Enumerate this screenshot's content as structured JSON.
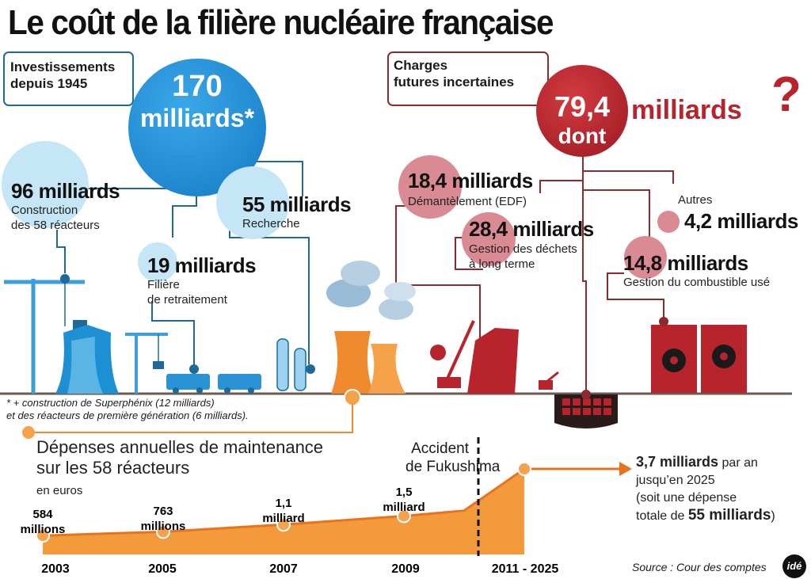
{
  "title": "Le coût de la filière nucléaire française",
  "investments": {
    "label_line1": "Investissements",
    "label_line2": "depuis 1945",
    "total_value": "170",
    "total_unit": "milliards",
    "asterisk": "*",
    "items": [
      {
        "amount": "96 milliards",
        "line1": "Construction",
        "line2": "des 58 réacteurs"
      },
      {
        "amount": "55 milliards",
        "line1": "Recherche",
        "line2": ""
      },
      {
        "amount": "19 milliards",
        "line1": "Filière",
        "line2": "de retraitement"
      }
    ],
    "footnote_line1": "* + construction de Superphénix (12 milliards)",
    "footnote_line2": "et des réacteurs de première génération (6 milliards)."
  },
  "future": {
    "label_line1": "Charges",
    "label_line2": "futures incertaines",
    "total_value": "79,4",
    "total_word": "dont",
    "total_unit": "milliards",
    "question": "?",
    "items": [
      {
        "amount": "18,4 milliards",
        "line1": "Démantèlement (EDF)",
        "line2": ""
      },
      {
        "amount": "28,4 milliards",
        "line1": "Gestion des déchets",
        "line2": "à long terme"
      },
      {
        "amount": "4,2 milliards",
        "line1": "Autres",
        "line2": ""
      },
      {
        "amount": "14,8 milliards",
        "line1": "Gestion du combustible usé",
        "line2": ""
      }
    ]
  },
  "maintenance": {
    "title_line1": "Dépenses annuelles de maintenance",
    "title_line2": "sur les 58 réacteurs",
    "unit": "en euros",
    "event_line1": "Accident",
    "event_line2": "de Fukushima",
    "projection": {
      "amount": "3,7 milliards",
      "line1_rest": "par an",
      "line2": "jusqu’en 2025",
      "line3": "(soit une dépense",
      "line4_pre": "totale de",
      "line4_bold": "55 milliards",
      "line4_post": ")"
    },
    "source": "Source : Cour des comptes",
    "logo": "idé"
  },
  "chart_data": {
    "type": "area",
    "x": [
      "2003",
      "2005",
      "2007",
      "2009",
      "2011 - 2025"
    ],
    "series": [
      {
        "values": [
          584000000,
          763000000,
          1100000000,
          1500000000,
          3700000000
        ],
        "labels": [
          [
            "584",
            "millions"
          ],
          [
            "763",
            "millions"
          ],
          [
            "1,1",
            "milliard"
          ],
          [
            "1,5",
            "milliard"
          ],
          [
            "",
            ""
          ]
        ]
      }
    ],
    "ylabel": "en euros",
    "colors": {
      "area": "#f39a3c",
      "line": "#e8731e",
      "marker": "#f5a24a"
    }
  },
  "colors": {
    "blue": "#1a8fd6",
    "light_blue": "#bfe3f6",
    "dark_red": "#b8242b",
    "pink": "#d98a92",
    "orange": "#f08a2e",
    "navy_line": "#1d6a9a",
    "maroon_line": "#8c2a2e"
  }
}
